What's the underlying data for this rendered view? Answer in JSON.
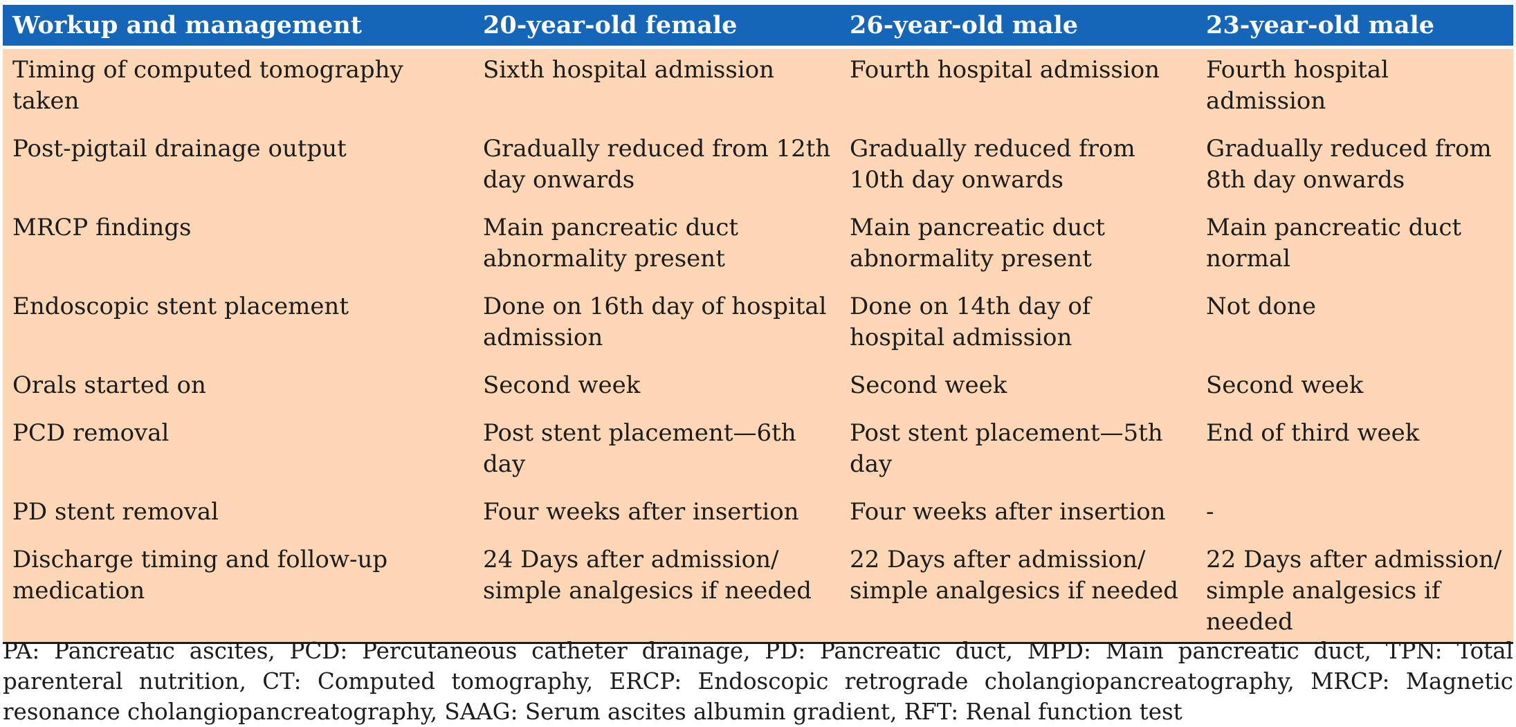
{
  "table": {
    "headers": [
      "Workup and management",
      "20-year-old female",
      "26-year-old male",
      "23-year-old male"
    ],
    "rows": [
      [
        "Timing of computed tomography taken",
        "Sixth hospital admission",
        "Fourth hospital admission",
        "Fourth hospital admission"
      ],
      [
        "Post-pigtail drainage output",
        "Gradually reduced from 12th day onwards",
        "Gradually reduced from 10th day onwards",
        "Gradually reduced from 8th day onwards"
      ],
      [
        "MRCP findings",
        "Main pancreatic duct abnormality present",
        "Main pancreatic duct abnormality present",
        "Main pancreatic duct normal"
      ],
      [
        "Endoscopic stent placement",
        "Done on 16th day of hospital admission",
        "Done on 14th day of hospital admission",
        "Not done"
      ],
      [
        "Orals started on",
        "Second week",
        "Second week",
        "Second week"
      ],
      [
        "PCD  removal",
        "Post stent placement—6th day",
        "Post stent placement—5th day",
        "End of third week"
      ],
      [
        "PD stent removal",
        "Four weeks after insertion",
        "Four weeks after insertion",
        "-"
      ],
      [
        "Discharge timing and follow-up medication",
        "24 Days after admission/ simple analgesics if needed",
        "22 Days after admission/ simple analgesics if needed",
        "22 Days after admission/ simple analgesics if needed"
      ]
    ]
  },
  "footnote": "PA: Pancreatic ascites, PCD: Percutaneous catheter drainage, PD: Pancreatic duct, MPD: Main pancreatic duct, TPN: Total parenteral nutrition, CT: Computed tomography, ERCP: Endoscopic retrograde cholangiopancreatography, MRCP: Magnetic resonance cholangiopancreatography, SAAG: Serum ascites albumin gradient, RFT: Renal function test",
  "colors": {
    "header_background": "#1565b8",
    "header_text": "#ffffff",
    "body_background": "#fcd6b5",
    "text": "#1c1c1c"
  }
}
